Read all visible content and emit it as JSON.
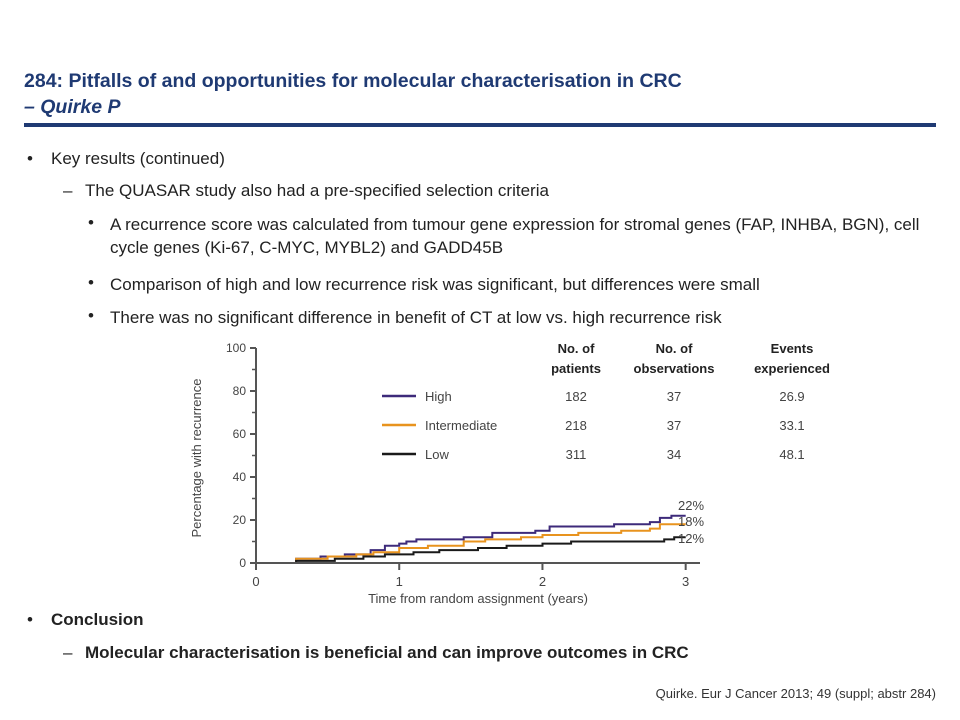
{
  "header": {
    "title": "284: Pitfalls of and opportunities for molecular characterisation in CRC",
    "subtitle": "– Quirke P"
  },
  "bullets": {
    "key_results": "Key results (continued)",
    "quasar": "The QUASAR study also had a pre-specified selection criteria",
    "sub1": "A recurrence score was calculated from tumour gene expression for stromal genes (FAP, INHBA, BGN), cell cycle genes (Ki-67, C-MYC, MYBL2) and GADD45B",
    "sub2": "Comparison of high and low recurrence risk was significant, but differences were small",
    "sub3": "There was no significant difference in benefit of CT at low vs. high recurrence risk",
    "conclusion": "Conclusion",
    "conclusion_text": "Molecular characterisation is beneficial and can improve outcomes in CRC",
    "bullet_char": "•",
    "dash_char": "–"
  },
  "reference": "Quirke. Eur J Cancer 2013; 49 (suppl; abstr 284)",
  "chart_data": {
    "type": "line",
    "xlabel": "Time from random assignment (years)",
    "ylabel": "Percentage with recurrence",
    "xlim": [
      0,
      3.1
    ],
    "ylim": [
      0,
      100
    ],
    "xticks": [
      "0",
      "1",
      "2",
      "3"
    ],
    "yticks": [
      "0",
      "20",
      "40",
      "60",
      "80",
      "100"
    ],
    "table_headers": [
      "No. of\npatients",
      "No. of\nobservations",
      "Events\nexperienced"
    ],
    "series": [
      {
        "name": "High",
        "color": "#3d2a7a",
        "patients": "182",
        "observations": "37",
        "events": "26.9",
        "end_label": "22%",
        "x": [
          0,
          0.28,
          0.28,
          0.45,
          0.45,
          0.62,
          0.62,
          0.8,
          0.8,
          0.9,
          0.9,
          1.0,
          1.0,
          1.05,
          1.05,
          1.12,
          1.12,
          1.45,
          1.45,
          1.65,
          1.65,
          1.95,
          1.95,
          2.05,
          2.05,
          2.5,
          2.5,
          2.75,
          2.75,
          2.82,
          2.82,
          2.9,
          2.9,
          3.0
        ],
        "y": [
          0,
          0,
          2,
          2,
          3,
          3,
          4,
          4,
          6,
          6,
          8,
          8,
          9,
          9,
          10,
          10,
          11,
          11,
          12,
          12,
          14,
          14,
          15,
          15,
          17,
          17,
          18,
          18,
          19,
          19,
          21,
          21,
          22,
          22
        ]
      },
      {
        "name": "Intermediate",
        "color": "#e8931e",
        "patients": "218",
        "observations": "37",
        "events": "33.1",
        "end_label": "18%",
        "x": [
          0,
          0.28,
          0.28,
          0.5,
          0.5,
          0.7,
          0.7,
          0.82,
          0.82,
          1.0,
          1.0,
          1.2,
          1.2,
          1.45,
          1.45,
          1.6,
          1.6,
          1.85,
          1.85,
          2.0,
          2.0,
          2.25,
          2.25,
          2.55,
          2.55,
          2.75,
          2.75,
          2.82,
          2.82,
          3.0
        ],
        "y": [
          0,
          0,
          2,
          2,
          3,
          3,
          4,
          4,
          5,
          5,
          7,
          7,
          8,
          8,
          10,
          10,
          11,
          11,
          12,
          12,
          13,
          13,
          14,
          14,
          15,
          15,
          16,
          16,
          18,
          18
        ]
      },
      {
        "name": "Low",
        "color": "#1a1a1a",
        "patients": "311",
        "observations": "34",
        "events": "48.1",
        "end_label": "12%",
        "x": [
          0,
          0.28,
          0.28,
          0.55,
          0.55,
          0.75,
          0.75,
          0.9,
          0.9,
          1.1,
          1.1,
          1.28,
          1.28,
          1.55,
          1.55,
          1.75,
          1.75,
          2.0,
          2.0,
          2.2,
          2.2,
          2.85,
          2.85,
          2.92,
          2.92,
          3.0
        ],
        "y": [
          0,
          0,
          1,
          1,
          2,
          2,
          3,
          3,
          4,
          4,
          5,
          5,
          6,
          6,
          7,
          7,
          8,
          8,
          9,
          9,
          10,
          10,
          11,
          11,
          12,
          12
        ]
      }
    ]
  }
}
